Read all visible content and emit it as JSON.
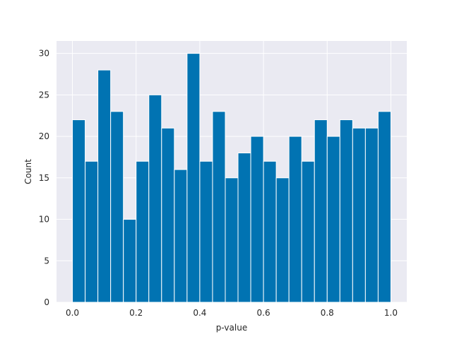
{
  "chart_data": {
    "type": "bar",
    "title": "",
    "xlabel": "p-value",
    "ylabel": "Count",
    "bin_width": 0.04,
    "bin_starts": [
      0.0,
      0.04,
      0.08,
      0.12,
      0.16,
      0.2,
      0.24,
      0.28,
      0.32,
      0.36,
      0.4,
      0.44,
      0.48,
      0.52,
      0.56,
      0.6,
      0.64,
      0.68,
      0.72,
      0.76,
      0.8,
      0.84,
      0.88,
      0.92,
      0.96
    ],
    "values": [
      22,
      17,
      28,
      23,
      10,
      17,
      25,
      21,
      16,
      30,
      17,
      23,
      15,
      18,
      20,
      17,
      15,
      20,
      17,
      22,
      20,
      22,
      21,
      21,
      23
    ],
    "xlim": [
      -0.05,
      1.05
    ],
    "ylim": [
      0,
      31.5
    ],
    "xticks": [
      "0.0",
      "0.2",
      "0.4",
      "0.6",
      "0.8",
      "1.0"
    ],
    "yticks": [
      "0",
      "5",
      "10",
      "15",
      "20",
      "25",
      "30"
    ],
    "grid": true,
    "colors": {
      "bar": "#0173b2",
      "background": "#eaeaf2",
      "grid": "#ffffff",
      "text": "#262626"
    }
  }
}
